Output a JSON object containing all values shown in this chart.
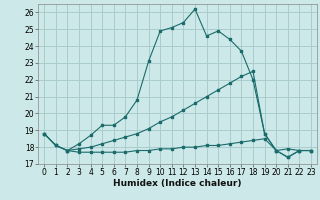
{
  "xlabel": "Humidex (Indice chaleur)",
  "background_color": "#cde8e8",
  "grid_color": "#aacccc",
  "line_color": "#1a6b6b",
  "xlim": [
    -0.5,
    23.5
  ],
  "ylim": [
    17,
    26.5
  ],
  "yticks": [
    17,
    18,
    19,
    20,
    21,
    22,
    23,
    24,
    25,
    26
  ],
  "xticks": [
    0,
    1,
    2,
    3,
    4,
    5,
    6,
    7,
    8,
    9,
    10,
    11,
    12,
    13,
    14,
    15,
    16,
    17,
    18,
    19,
    20,
    21,
    22,
    23
  ],
  "line1_x": [
    0,
    1,
    2,
    3,
    4,
    5,
    6,
    7,
    8,
    9,
    10,
    11,
    12,
    13,
    14,
    15,
    16,
    17,
    18,
    19,
    20,
    21,
    22,
    23
  ],
  "line1_y": [
    18.8,
    18.1,
    17.8,
    18.2,
    18.7,
    19.3,
    19.3,
    19.8,
    20.8,
    23.1,
    24.9,
    25.1,
    25.4,
    26.2,
    24.6,
    24.9,
    24.4,
    23.7,
    22.0,
    18.8,
    17.8,
    17.4,
    17.8,
    17.8
  ],
  "line2_x": [
    0,
    1,
    2,
    3,
    4,
    5,
    6,
    7,
    8,
    9,
    10,
    11,
    12,
    13,
    14,
    15,
    16,
    17,
    18,
    19,
    20,
    21,
    22,
    23
  ],
  "line2_y": [
    18.8,
    18.1,
    17.8,
    17.9,
    18.0,
    18.2,
    18.4,
    18.6,
    18.8,
    19.1,
    19.5,
    19.8,
    20.2,
    20.6,
    21.0,
    21.4,
    21.8,
    22.2,
    22.5,
    18.8,
    17.8,
    17.9,
    17.8,
    17.8
  ],
  "line3_x": [
    0,
    1,
    2,
    3,
    4,
    5,
    6,
    7,
    8,
    9,
    10,
    11,
    12,
    13,
    14,
    15,
    16,
    17,
    18,
    19,
    20,
    21,
    22,
    23
  ],
  "line3_y": [
    18.8,
    18.1,
    17.8,
    17.7,
    17.7,
    17.7,
    17.7,
    17.7,
    17.8,
    17.8,
    17.9,
    17.9,
    18.0,
    18.0,
    18.1,
    18.1,
    18.2,
    18.3,
    18.4,
    18.5,
    17.8,
    17.4,
    17.8,
    17.8
  ]
}
